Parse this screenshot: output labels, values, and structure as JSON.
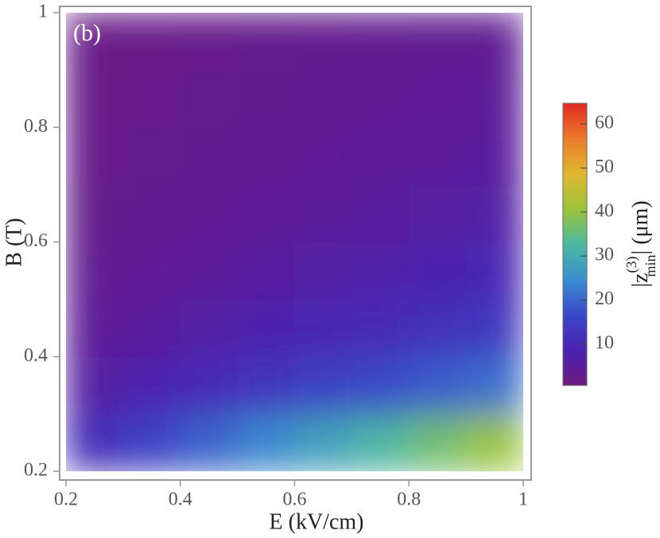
{
  "chart_data": {
    "type": "heatmap",
    "annotation": "(b)",
    "xlabel": "E (kV/cm)",
    "ylabel": "B (T)",
    "colorbar_label": [
      "|z",
      "(3)",
      "min",
      "| (μm)"
    ],
    "x": [
      0.25,
      0.35,
      0.45,
      0.55,
      0.65,
      0.75,
      0.85,
      0.95
    ],
    "y": [
      0.25,
      0.35,
      0.45,
      0.55,
      0.65,
      0.75,
      0.85,
      0.95
    ],
    "z": [
      [
        11.4,
        15.6,
        19.7,
        23.9,
        28.0,
        32.2,
        36.4,
        40.5
      ],
      [
        6.3,
        8.4,
        10.5,
        12.7,
        14.8,
        16.9,
        19.0,
        21.2
      ],
      [
        4.2,
        5.5,
        6.8,
        8.1,
        9.3,
        10.6,
        11.9,
        13.2
      ],
      [
        3.2,
        4.0,
        4.9,
        5.7,
        6.6,
        7.5,
        8.3,
        9.2
      ],
      [
        2.5,
        3.2,
        3.8,
        4.4,
        5.0,
        5.6,
        6.2,
        6.9
      ],
      [
        2.2,
        2.6,
        3.1,
        3.5,
        4.0,
        4.5,
        4.9,
        5.4
      ],
      [
        1.9,
        2.3,
        2.6,
        3.0,
        3.3,
        3.7,
        4.1,
        4.4
      ],
      [
        1.7,
        2.0,
        2.3,
        2.6,
        2.9,
        3.2,
        3.5,
        3.7
      ]
    ],
    "xlim": [
      0.2,
      1
    ],
    "xticks": [
      0.2,
      0.4,
      0.6,
      0.8,
      1
    ],
    "ylim": [
      0.2,
      1
    ],
    "yticks": [
      0.2,
      0.4,
      0.6,
      0.8,
      1
    ],
    "clim": [
      0.6,
      64.7
    ],
    "cticks": [
      10,
      20,
      30,
      40,
      50,
      60
    ],
    "colorscale": [
      "#6e1a80",
      "#4a22b0",
      "#3a48c8",
      "#3a8ed0",
      "#4cb8a0",
      "#9cc43c",
      "#e0b830",
      "#eb7a2c",
      "#e22a22"
    ]
  }
}
